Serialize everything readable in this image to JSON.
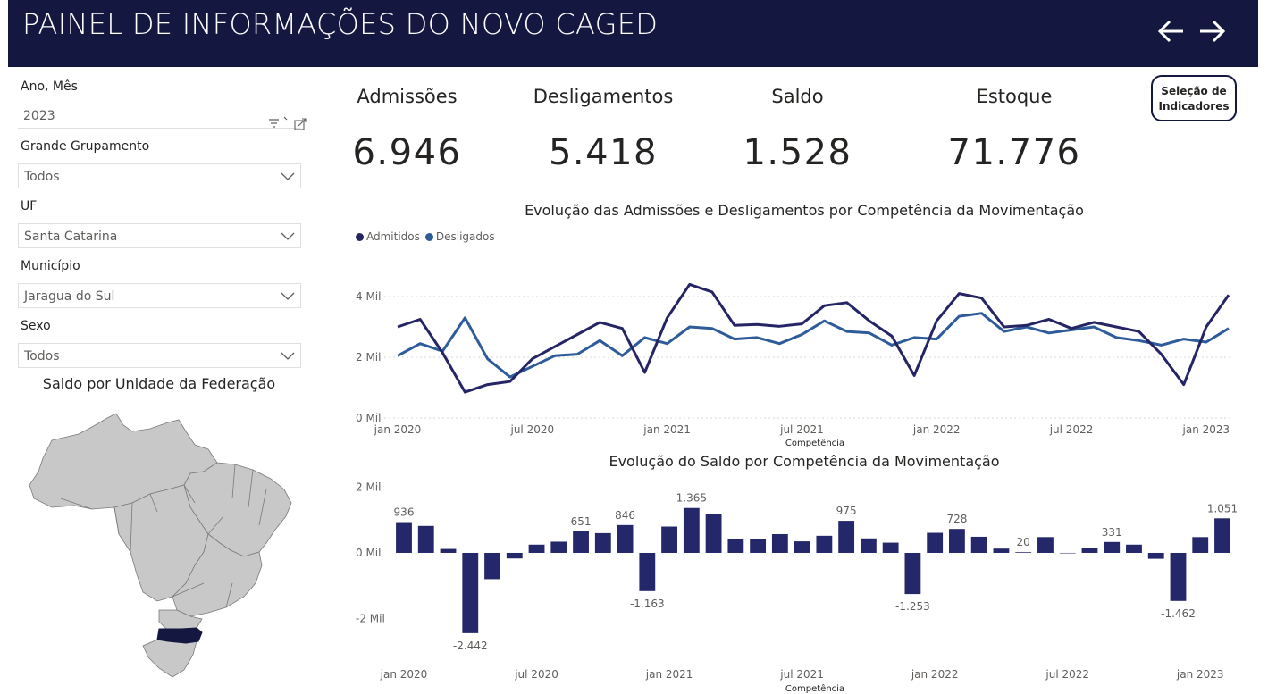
{
  "header": {
    "title": "PAINEL DE INFORMAÇÕES DO NOVO CAGED",
    "back_icon": "arrow-left-icon",
    "forward_icon": "arrow-right-icon"
  },
  "filters": {
    "ano_mes": {
      "label": "Ano, Mês",
      "value": "2023"
    },
    "grande_grupamento": {
      "label": "Grande Grupamento",
      "value": "Todos"
    },
    "uf": {
      "label": "UF",
      "value": "Santa Catarina"
    },
    "municipio": {
      "label": "Município",
      "value": "Jaragua do Sul"
    },
    "sexo": {
      "label": "Sexo",
      "value": "Todos"
    }
  },
  "map": {
    "title": "Saldo por Unidade da Federação",
    "highlighted_state": "Santa Catarina",
    "base_color": "#c8c8c8",
    "highlight_color": "#14173f"
  },
  "kpis": [
    {
      "label": "Admissões",
      "value": "6.946"
    },
    {
      "label": "Desligamentos",
      "value": "5.418"
    },
    {
      "label": "Saldo",
      "value": "1.528"
    },
    {
      "label": "Estoque",
      "value": "71.776"
    }
  ],
  "selection_button": {
    "label_line1": "Seleção de",
    "label_line2": "Indicadores"
  },
  "colors": {
    "header_bg": "#14173f",
    "admitidos": "#252566",
    "desligados": "#2e5b9a",
    "saldo_bar": "#25276b"
  },
  "chart_data": [
    {
      "type": "line",
      "title": "Evolução das Admissões e Desligamentos por Competência da Movimentação",
      "xlabel": "Competência",
      "ylabel": "",
      "x_ticks": [
        "jan 2020",
        "jul 2020",
        "jan 2021",
        "jul 2021",
        "jan 2022",
        "jul 2022",
        "jan 2023"
      ],
      "y_ticks": [
        "0 Mil",
        "2 Mil",
        "4 Mil"
      ],
      "ylim": [
        0,
        4500
      ],
      "grid": true,
      "legend": "top-left",
      "series": [
        {
          "name": "Admitidos",
          "values": [
            3000,
            3250,
            2150,
            850,
            1100,
            1200,
            1950,
            2350,
            2750,
            3150,
            2950,
            1500,
            3300,
            4400,
            4150,
            3050,
            3080,
            3020,
            3100,
            3700,
            3800,
            3200,
            2700,
            1400,
            3200,
            4100,
            3950,
            3000,
            3050,
            3250,
            2950,
            3150,
            3000,
            2850,
            2100,
            1100,
            3000,
            4050
          ]
        },
        {
          "name": "Desligados",
          "values": [
            2050,
            2450,
            2200,
            3300,
            1950,
            1350,
            1700,
            2050,
            2100,
            2550,
            2050,
            2650,
            2450,
            3000,
            2950,
            2600,
            2650,
            2450,
            2750,
            3200,
            2850,
            2800,
            2400,
            2650,
            2600,
            3350,
            3450,
            2850,
            3000,
            2800,
            2900,
            3000,
            2650,
            2550,
            2400,
            2600,
            2500,
            2950
          ]
        }
      ]
    },
    {
      "type": "bar",
      "title": "Evolução do Saldo por Competência da Movimentação",
      "xlabel": "Competência",
      "ylabel": "",
      "x_ticks": [
        "jan 2020",
        "jul 2020",
        "jan 2021",
        "jul 2021",
        "jan 2022",
        "jul 2022",
        "jan 2023"
      ],
      "y_ticks": [
        "-2 Mil",
        "0 Mil",
        "2 Mil"
      ],
      "ylim": [
        -2500,
        2200
      ],
      "values": [
        936,
        820,
        120,
        -2442,
        -800,
        -170,
        250,
        340,
        651,
        600,
        846,
        -1163,
        800,
        1365,
        1190,
        420,
        430,
        570,
        350,
        520,
        975,
        440,
        310,
        -1253,
        610,
        728,
        490,
        130,
        20,
        480,
        0,
        140,
        331,
        250,
        -180,
        -1462,
        480,
        1051
      ],
      "data_labels": [
        {
          "index": 0,
          "text": "936"
        },
        {
          "index": 3,
          "text": "-2.442"
        },
        {
          "index": 8,
          "text": "651"
        },
        {
          "index": 10,
          "text": "846"
        },
        {
          "index": 11,
          "text": "-1.163"
        },
        {
          "index": 13,
          "text": "1.365"
        },
        {
          "index": 20,
          "text": "975"
        },
        {
          "index": 23,
          "text": "-1.253"
        },
        {
          "index": 25,
          "text": "728"
        },
        {
          "index": 28,
          "text": "20"
        },
        {
          "index": 32,
          "text": "331"
        },
        {
          "index": 35,
          "text": "-1.462"
        },
        {
          "index": 37,
          "text": "1.051"
        }
      ]
    }
  ]
}
